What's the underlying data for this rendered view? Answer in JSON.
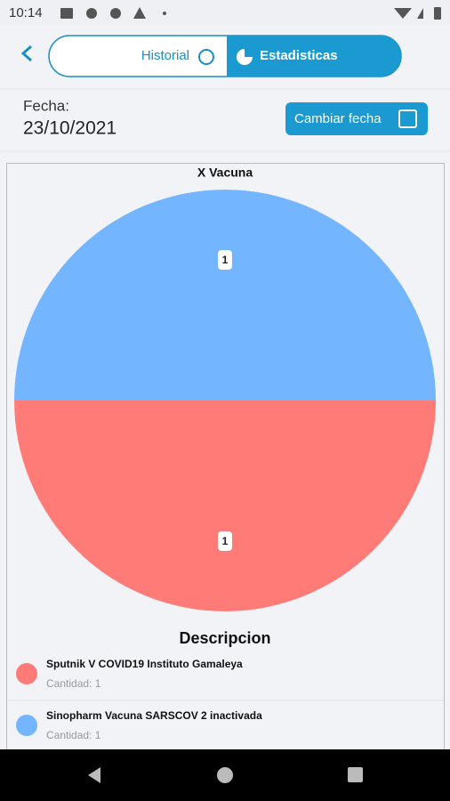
{
  "status_bar": {
    "time": "10:14"
  },
  "tabs": [
    "Historial",
    "Estadisticas"
  ],
  "date": {
    "label": "Fecha:",
    "value": "23/10/2021",
    "button": "Cambiar fecha"
  },
  "chart_data": {
    "type": "pie",
    "title": "X Vacuna",
    "categories": [
      "Sputnik V COVID19 Instituto Gamaleya",
      "Sinopharm Vacuna SARSCOV 2 inactivada"
    ],
    "values": [
      1,
      1
    ],
    "colors": [
      "#ff7b78",
      "#73b6ff"
    ],
    "legend_title": "Descripcion",
    "quantity_labels": [
      "Cantidad: 1",
      "Cantidad: 1"
    ]
  }
}
